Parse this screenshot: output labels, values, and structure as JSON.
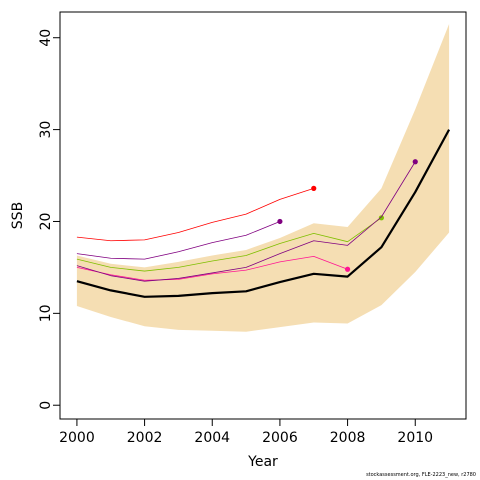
{
  "chart_data": {
    "type": "line",
    "xlabel": "Year",
    "ylabel": "SSB",
    "xlim": [
      1999.5,
      2011.5
    ],
    "ylim": [
      -1.5,
      42.8
    ],
    "xticks": [
      2000,
      2002,
      2004,
      2006,
      2008,
      2010
    ],
    "yticks": [
      0,
      10,
      20,
      30,
      40
    ],
    "grid": false,
    "band": {
      "name": "",
      "color": "#f5deb3",
      "x": [
        2000,
        2001,
        2002,
        2003,
        2004,
        2005,
        2006,
        2007,
        2008,
        2009,
        2010,
        2011
      ],
      "upper": [
        16.3,
        15.4,
        15.0,
        15.6,
        16.3,
        16.9,
        18.2,
        19.8,
        19.4,
        23.6,
        32.2,
        41.5
      ],
      "lower": [
        10.8,
        9.6,
        8.6,
        8.2,
        8.1,
        8.0,
        8.5,
        9.0,
        8.9,
        10.9,
        14.5,
        18.8
      ]
    },
    "series": [
      {
        "name": "",
        "color": "#000000",
        "width": 2.2,
        "x": [
          2000,
          2001,
          2002,
          2003,
          2004,
          2005,
          2006,
          2007,
          2008,
          2009,
          2010,
          2011
        ],
        "y": [
          13.5,
          12.5,
          11.8,
          11.9,
          12.2,
          12.4,
          13.4,
          14.3,
          14.0,
          17.2,
          23.2,
          30.0
        ],
        "endpoint": false
      },
      {
        "name": "",
        "color": "#ff0000",
        "width": 0.8,
        "x": [
          2000,
          2001,
          2002,
          2003,
          2004,
          2005,
          2006,
          2007
        ],
        "y": [
          18.3,
          17.9,
          18.0,
          18.8,
          19.9,
          20.8,
          22.4,
          23.6
        ],
        "endpoint": true
      },
      {
        "name": "",
        "color": "#800080",
        "width": 0.8,
        "x": [
          2000,
          2001,
          2002,
          2003,
          2004,
          2005,
          2006
        ],
        "y": [
          16.5,
          16.0,
          15.9,
          16.7,
          17.7,
          18.5,
          20.0
        ],
        "endpoint": true
      },
      {
        "name": "",
        "color": "#ff1493",
        "width": 0.8,
        "x": [
          2000,
          2001,
          2002,
          2003,
          2004,
          2005,
          2006,
          2007,
          2008
        ],
        "y": [
          15.0,
          14.2,
          13.6,
          13.7,
          14.3,
          14.7,
          15.6,
          16.2,
          14.8
        ],
        "endpoint": true
      },
      {
        "name": "",
        "color": "#7fbf00",
        "width": 0.8,
        "x": [
          2000,
          2001,
          2002,
          2003,
          2004,
          2005,
          2006,
          2007,
          2008,
          2009
        ],
        "y": [
          15.9,
          15.0,
          14.6,
          15.0,
          15.7,
          16.3,
          17.6,
          18.7,
          17.8,
          20.4
        ],
        "endpoint": true
      },
      {
        "name": "",
        "color": "#800080",
        "width": 0.8,
        "x": [
          2000,
          2001,
          2002,
          2003,
          2004,
          2005,
          2006,
          2007,
          2008,
          2009,
          2010
        ],
        "y": [
          15.2,
          14.1,
          13.5,
          13.8,
          14.4,
          15.0,
          16.5,
          17.9,
          17.4,
          20.5,
          26.5
        ],
        "endpoint": true
      }
    ]
  },
  "footer": "stockassessment.org, FLE-2223_new, r2780"
}
